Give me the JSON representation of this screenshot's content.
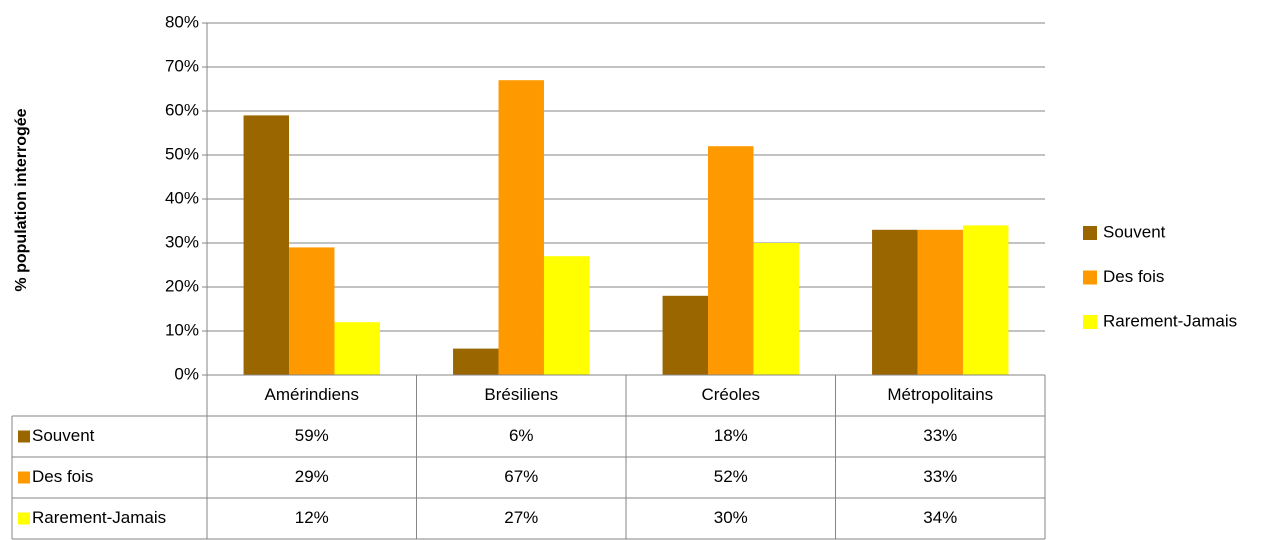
{
  "chart_data": {
    "type": "bar",
    "y_label": "% population interrogée",
    "categories": [
      "Amérindiens",
      "Brésiliens",
      "Créoles",
      "Métropolitains"
    ],
    "series": [
      {
        "name": "Souvent",
        "color": "#996600",
        "values": [
          59,
          6,
          18,
          33
        ],
        "value_labels": [
          "59%",
          "6%",
          "18%",
          "33%"
        ]
      },
      {
        "name": "Des fois",
        "color": "#ff9900",
        "values": [
          29,
          67,
          52,
          33
        ],
        "value_labels": [
          "29%",
          "67%",
          "52%",
          "33%"
        ]
      },
      {
        "name": "Rarement-Jamais",
        "color": "#ffff00",
        "values": [
          12,
          27,
          30,
          34
        ],
        "value_labels": [
          "12%",
          "27%",
          "30%",
          "34%"
        ]
      }
    ],
    "ylim": [
      0,
      80
    ],
    "yticks": [
      {
        "value": 0,
        "label": "0%"
      },
      {
        "value": 10,
        "label": "10%"
      },
      {
        "value": 20,
        "label": "20%"
      },
      {
        "value": 30,
        "label": "30%"
      },
      {
        "value": 40,
        "label": "40%"
      },
      {
        "value": 50,
        "label": "50%"
      },
      {
        "value": 60,
        "label": "60%"
      },
      {
        "value": 70,
        "label": "70%"
      },
      {
        "value": 80,
        "label": "80%"
      }
    ],
    "grid": true,
    "legend": "right"
  }
}
